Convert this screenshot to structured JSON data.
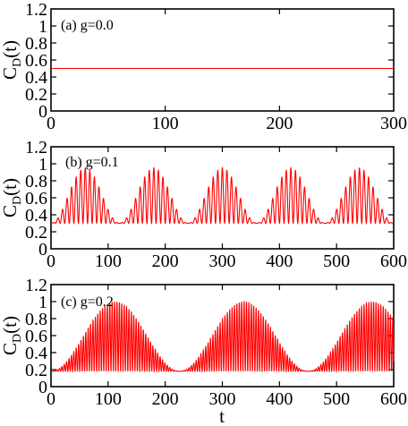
{
  "chart_data": [
    {
      "type": "line",
      "annotation": "(a) g=0.0",
      "ylabel_main": "C",
      "ylabel_sub": "D",
      "ylabel_tail": "(t)",
      "xlabel": "",
      "xlim": [
        0,
        300
      ],
      "ylim": [
        0,
        1.2
      ],
      "xticks": [
        "0",
        "100",
        "200",
        "300"
      ],
      "yticks": [
        "0",
        "0.2",
        "0.4",
        "0.6",
        "0.8",
        "1",
        "1.2"
      ],
      "series_color": "#ff0000",
      "model": {
        "kind": "constant",
        "value": 0.5
      },
      "x": [
        0,
        300
      ],
      "y": [
        0.5,
        0.5
      ]
    },
    {
      "type": "line",
      "annotation": "(b) g=0.1",
      "ylabel_main": "C",
      "ylabel_sub": "D",
      "ylabel_tail": "(t)",
      "xlabel": "",
      "xlim": [
        0,
        600
      ],
      "ylim": [
        0,
        1.2
      ],
      "xticks": [
        "0",
        "100",
        "200",
        "300",
        "400",
        "500",
        "600"
      ],
      "yticks": [
        "0",
        "0.2",
        "0.4",
        "0.6",
        "0.8",
        "1",
        "1.2"
      ],
      "series_color": "#ff0000",
      "model": {
        "kind": "beating",
        "center": 0.3,
        "envelope_max": 0.95,
        "envelope_period": 120,
        "carrier_period": 8
      },
      "envelope_peaks_x": [
        60,
        180,
        300,
        420,
        540
      ],
      "envelope_peaks_y": [
        0.95,
        0.95,
        0.95,
        0.95,
        0.95
      ],
      "envelope_minima_x": [
        0,
        120,
        240,
        360,
        480,
        600
      ],
      "envelope_minima_y": [
        0.3,
        0.3,
        0.3,
        0.3,
        0.3,
        0.3
      ]
    },
    {
      "type": "line",
      "annotation": "(c) g=0.2",
      "ylabel_main": "C",
      "ylabel_sub": "D",
      "ylabel_tail": "(t)",
      "xlabel": "t",
      "xlim": [
        0,
        600
      ],
      "ylim": [
        0,
        1.2
      ],
      "xticks": [
        "0",
        "100",
        "200",
        "300",
        "400",
        "500",
        "600"
      ],
      "yticks": [
        "0",
        "0.2",
        "0.4",
        "0.6",
        "0.8",
        "1",
        "1.2"
      ],
      "series_color": "#ff0000",
      "model": {
        "kind": "beating",
        "center": 0.18,
        "envelope_max": 1.0,
        "envelope_period": 225,
        "carrier_period": 4.2
      },
      "envelope_peaks_x": [
        112,
        337,
        562
      ],
      "envelope_peaks_y": [
        1.0,
        1.0,
        1.0
      ],
      "envelope_minima_x": [
        0,
        225,
        450
      ],
      "envelope_minima_y": [
        0.18,
        0.18,
        0.18
      ]
    }
  ]
}
